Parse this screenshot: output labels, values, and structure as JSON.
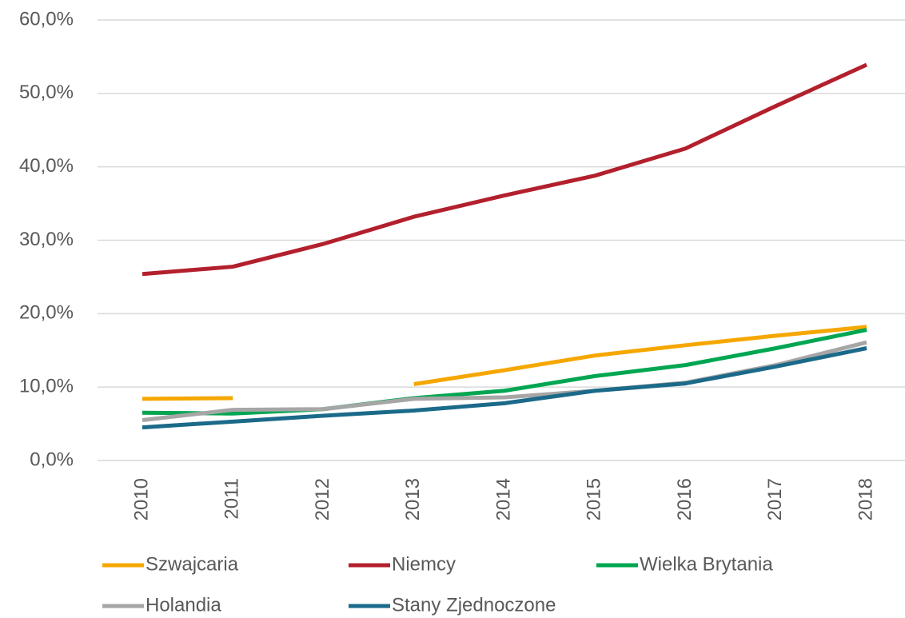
{
  "chart_data": {
    "type": "line",
    "categories": [
      "2010",
      "2011",
      "2012",
      "2013",
      "2014",
      "2015",
      "2016",
      "2017",
      "2018"
    ],
    "series": [
      {
        "name": "Szwajcaria",
        "color": "#F5A700",
        "values": [
          8.4,
          8.5,
          null,
          10.4,
          12.3,
          14.3,
          15.7,
          17.0,
          18.2
        ]
      },
      {
        "name": "Niemcy",
        "color": "#B3202D",
        "values": [
          25.4,
          26.4,
          29.5,
          33.2,
          36.1,
          38.8,
          42.5,
          48.3,
          53.9
        ]
      },
      {
        "name": "Wielka Brytania",
        "color": "#00A651",
        "values": [
          6.5,
          6.4,
          7.0,
          8.5,
          9.5,
          11.5,
          13.0,
          15.3,
          17.8
        ]
      },
      {
        "name": "Holandia",
        "color": "#A6A6A6",
        "values": [
          5.5,
          6.9,
          7.0,
          8.4,
          8.6,
          9.5,
          10.6,
          13.0,
          16.1
        ]
      },
      {
        "name": "Stany Zjednoczone",
        "color": "#1B6A8A",
        "values": [
          4.5,
          5.3,
          6.1,
          6.8,
          7.8,
          9.5,
          10.5,
          12.8,
          15.3
        ]
      }
    ],
    "ylim": [
      0,
      60
    ],
    "yticks": [
      {
        "value": 0,
        "label": "0,0%"
      },
      {
        "value": 10,
        "label": "10,0%"
      },
      {
        "value": 20,
        "label": "20,0%"
      },
      {
        "value": 30,
        "label": "30,0%"
      },
      {
        "value": 40,
        "label": "40,0%"
      },
      {
        "value": 50,
        "label": "50,0%"
      },
      {
        "value": 60,
        "label": "60,0%"
      }
    ],
    "grid": true,
    "legend": "bottom"
  }
}
